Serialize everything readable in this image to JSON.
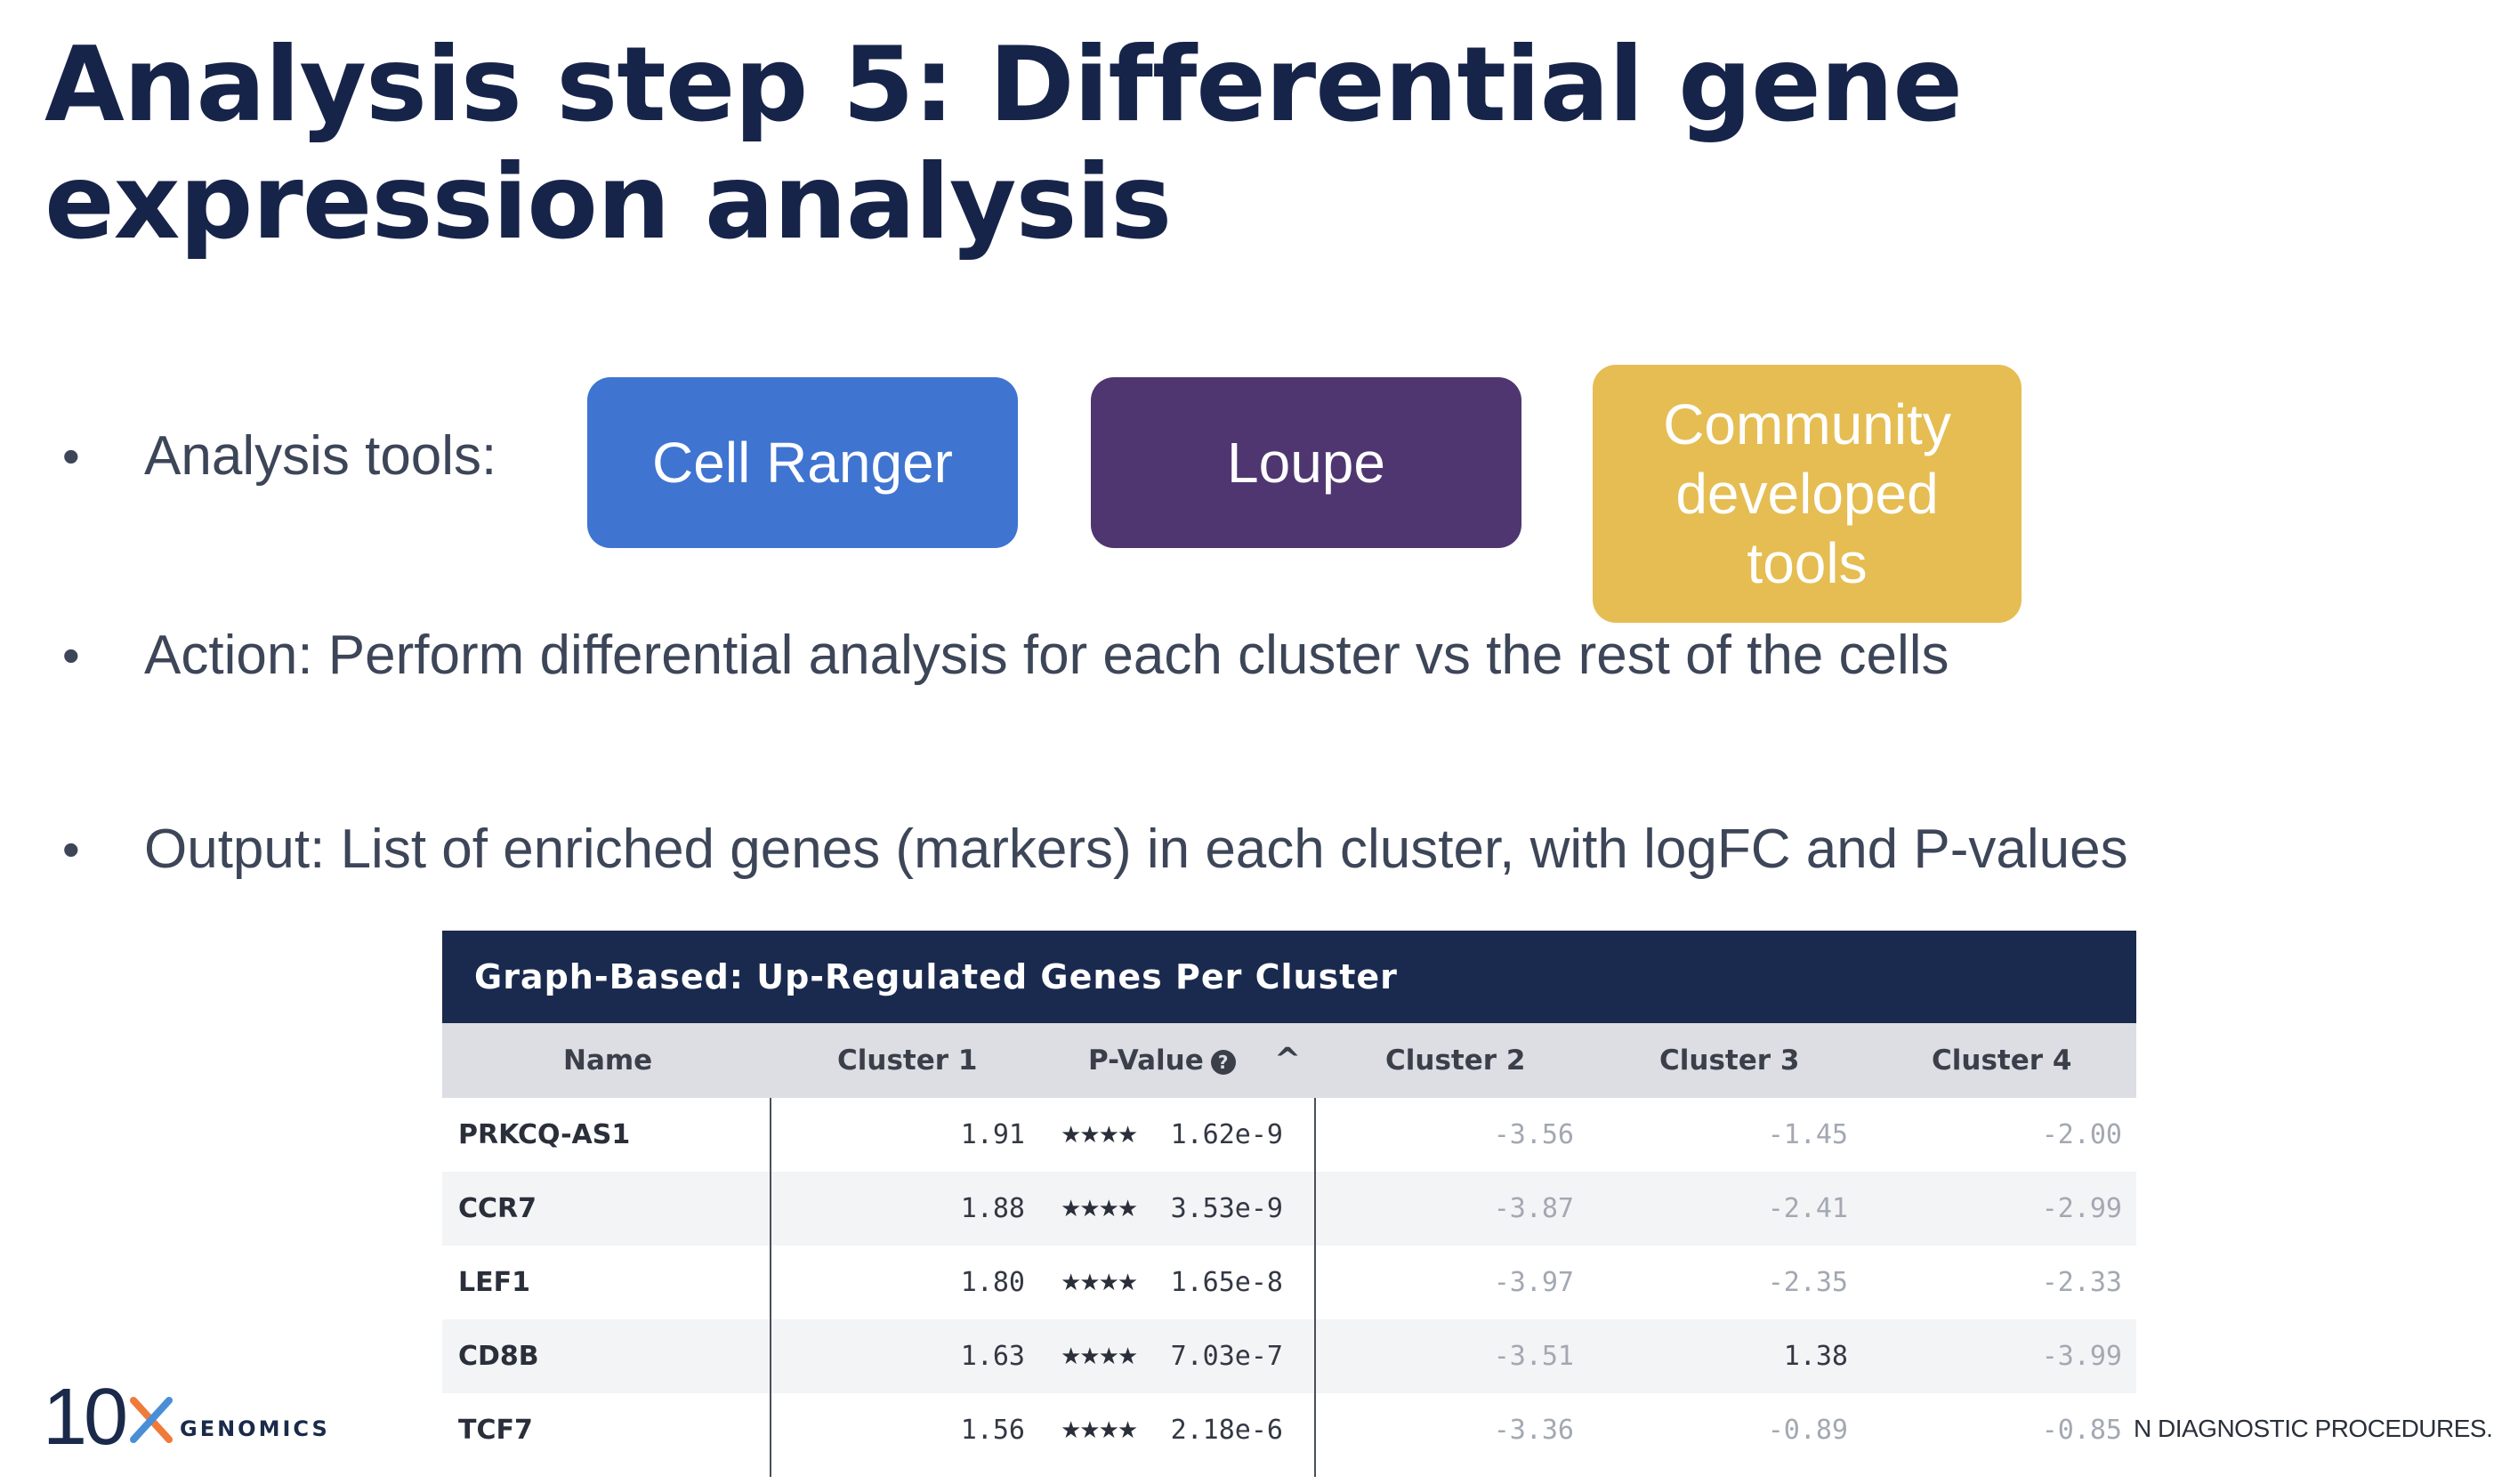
{
  "slide": {
    "title": "Analysis step 5: Differential gene expression analysis",
    "bullets": [
      {
        "label": "Analysis tools:"
      },
      {
        "label": "Action: Perform differential analysis for each cluster vs the rest of the cells"
      },
      {
        "label": "Output: List of enriched genes (markers) in each cluster, with logFC and P-values"
      }
    ],
    "bullet_symbol": "•",
    "tools": [
      {
        "label": "Cell Ranger",
        "color": "#3f74d1"
      },
      {
        "label": "Loupe",
        "color": "#4f3670"
      },
      {
        "label": "Community\ndeveloped\ntools",
        "color": "#e5bd52"
      }
    ]
  },
  "table": {
    "title": "Graph-Based: Up-Regulated Genes Per Cluster",
    "header_color": "#1a2a4e",
    "columns": {
      "name": "Name",
      "cluster1": "Cluster 1",
      "pvalue": "P-Value",
      "help_icon": "?",
      "sort_icon": "^",
      "cluster2": "Cluster 2",
      "cluster3": "Cluster 3",
      "cluster4": "Cluster 4"
    },
    "rows": [
      {
        "name": "PRKCQ-AS1",
        "c1": "1.91",
        "stars": "★★★★",
        "p": "1.62e-9",
        "c2": "-3.56",
        "c3": "-1.45",
        "c4": "-2.00"
      },
      {
        "name": "CCR7",
        "c1": "1.88",
        "stars": "★★★★",
        "p": "3.53e-9",
        "c2": "-3.87",
        "c3": "-2.41",
        "c4": "-2.99"
      },
      {
        "name": "LEF1",
        "c1": "1.80",
        "stars": "★★★★",
        "p": "1.65e-8",
        "c2": "-3.97",
        "c3": "-2.35",
        "c4": "-2.33"
      },
      {
        "name": "CD8B",
        "c1": "1.63",
        "stars": "★★★★",
        "p": "7.03e-7",
        "c2": "-3.51",
        "c3": "1.38",
        "c4": "-3.99"
      },
      {
        "name": "TCF7",
        "c1": "1.56",
        "stars": "★★★★",
        "p": "2.18e-6",
        "c2": "-3.36",
        "c3": "-0.89",
        "c4": "-0.85"
      }
    ]
  },
  "footer": {
    "logo_number": "10",
    "logo_word": "GENOMICS",
    "disclaimer": "N DIAGNOSTIC PROCEDURES."
  }
}
